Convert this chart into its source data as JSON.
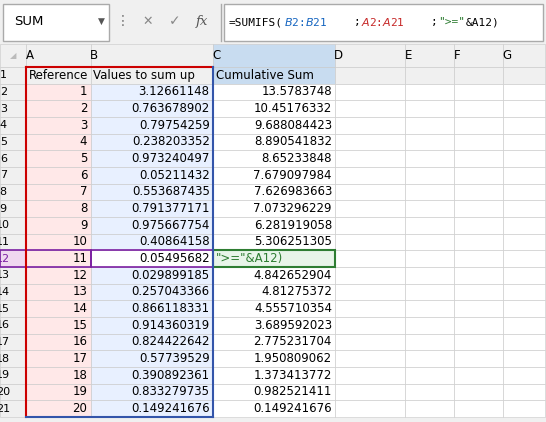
{
  "formula_bar_name": "SUM",
  "col_headers": [
    "A",
    "B",
    "C",
    "D",
    "E",
    "F",
    "G"
  ],
  "headers": [
    "Reference",
    "Values to sum up",
    "Cumulative Sum"
  ],
  "col_a": [
    1,
    2,
    3,
    4,
    5,
    6,
    7,
    8,
    9,
    10,
    11,
    12,
    13,
    14,
    15,
    16,
    17,
    18,
    19,
    20
  ],
  "col_b": [
    3.126611479,
    0.763678902,
    0.79754259,
    0.238203352,
    0.973240497,
    0.05211432,
    0.553687435,
    0.791377171,
    0.975667754,
    0.40864158,
    0.05495682,
    0.029899185,
    0.257043366,
    0.866118331,
    0.914360319,
    0.824422642,
    0.57739529,
    0.390892361,
    0.833279735,
    0.149241676
  ],
  "col_c_values": [
    "13.5783748",
    "10.45176332",
    "9.688084423",
    "8.890541832",
    "8.65233848",
    "7.679097984",
    "7.626983663",
    "7.073296229",
    "6.281919058",
    "5.306251305",
    "\">=\"&A12)",
    "4.842652904",
    "4.81275372",
    "4.555710354",
    "3.689592023",
    "2.775231704",
    "1.950809062",
    "1.373413772",
    "0.982521411",
    "0.149241676"
  ],
  "highlighted_row": 12,
  "col_a_bg": "#FFE8E8",
  "col_b_bg": "#E8F0FF",
  "col_c_formula_bg": "#E8F5E9",
  "formula_color_black": "#000000",
  "formula_color_blue": "#1565C0",
  "formula_color_red": "#C62828",
  "formula_color_green": "#2E7D32",
  "toolbar_bg": "#F0F0F0",
  "grid_color": "#C8C8C8",
  "row_header_bg": "#F0F0F0",
  "col_header_bg": "#F0F0F0",
  "col_c_header_bg": "#C8DCF0",
  "cell_bg": "#FFFFFF",
  "border_red": "#CC0000",
  "border_blue": "#3355AA",
  "border_green": "#2E7D32",
  "border_purple": "#7B1FA2",
  "highlight_row_num_bg": "#F0D8F0",
  "highlight_row_num_color": "#7B1FA2"
}
